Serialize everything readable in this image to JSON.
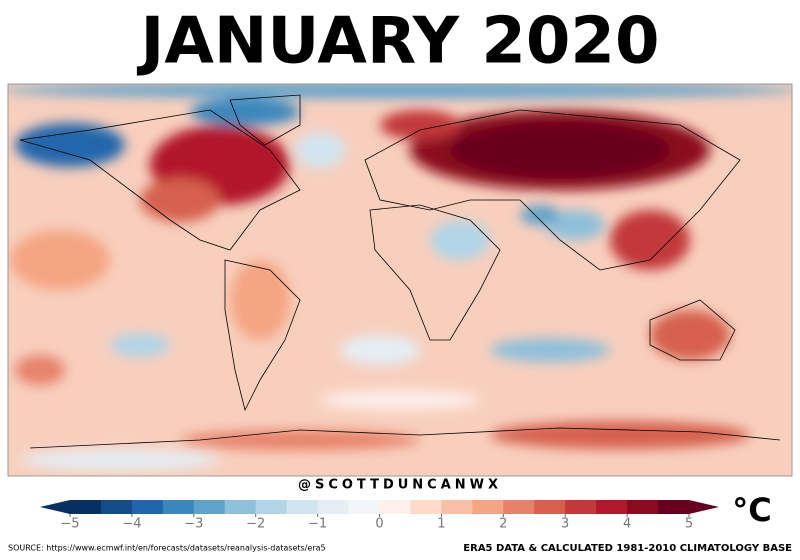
{
  "title": "JANUARY 2020",
  "handle": "@SCOTTDUNCANWX",
  "colorbar": {
    "range": [
      -5,
      5
    ],
    "ticks": [
      {
        "value": -5,
        "label": "−5"
      },
      {
        "value": -4,
        "label": "−4"
      },
      {
        "value": -3,
        "label": "−3"
      },
      {
        "value": -2,
        "label": "−2"
      },
      {
        "value": -1,
        "label": "−1"
      },
      0,
      1,
      2,
      3,
      4,
      5
    ],
    "unit": "°C",
    "colors": [
      "#053061",
      "#134c87",
      "#2166ac",
      "#3a87bd",
      "#5fa3cb",
      "#8ec0da",
      "#b1d5e7",
      "#d1e5f0",
      "#e4eef4",
      "#f3f6f8",
      "#fdf0ea",
      "#fddbc7",
      "#f8c0a5",
      "#f4a582",
      "#e7826a",
      "#d6604d",
      "#c2383b",
      "#b2182b",
      "#8b0a1e",
      "#67001f"
    ]
  },
  "source": "SOURCE: https://www.ecmwf.int/en/forecasts/datasets/reanalysis-datasets/era5",
  "footer": "ERA5 DATA & CALCULATED 1981-2010 CLIMATOLOGY BASE"
}
